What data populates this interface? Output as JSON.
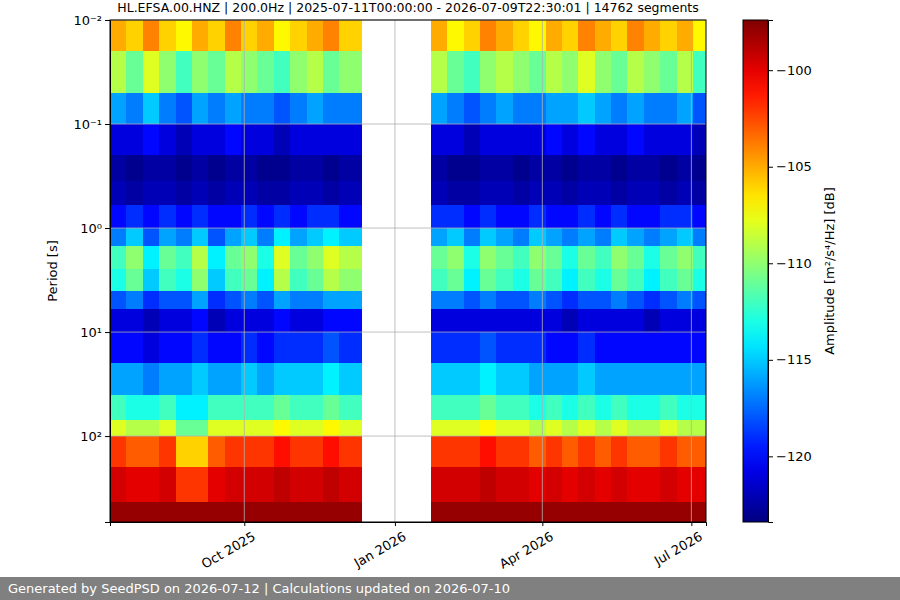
{
  "chart_data": {
    "type": "heatmap",
    "title": "HL.EFSA.00.HNZ | 200.0Hz | 2025-07-11T00:00:00 - 2026-07-09T22:30:01 | 14762 segments",
    "ylabel": "Period [s]",
    "log": "y",
    "grid": true,
    "xlim": [
      "2025-07-11T00:00:00",
      "2026-07-09T22:30:01"
    ],
    "ylim": [
      0.01,
      670
    ],
    "xticks": [
      {
        "value": "2025-10-01",
        "label": "Oct 2025"
      },
      {
        "value": "2026-01-01",
        "label": "Jan 2026"
      },
      {
        "value": "2026-04-01",
        "label": "Apr 2026"
      },
      {
        "value": "2026-07-01",
        "label": "Jul 2026"
      }
    ],
    "yticks": [
      {
        "value": 0.01,
        "label": "10⁻²"
      },
      {
        "value": 0.1,
        "label": "10⁻¹"
      },
      {
        "value": 1,
        "label": "10⁰"
      },
      {
        "value": 10,
        "label": "10¹"
      },
      {
        "value": 100,
        "label": "10²"
      }
    ],
    "x_bins": [
      "2025-07-11",
      "2025-07-21",
      "2025-07-31",
      "2025-08-10",
      "2025-08-20",
      "2025-08-30",
      "2025-09-09",
      "2025-09-19",
      "2025-09-29",
      "2025-10-09",
      "2025-10-19",
      "2025-10-29",
      "2025-11-08",
      "2025-11-18",
      "2025-11-28",
      "2025-12-12",
      "2026-01-23",
      "2026-02-02",
      "2026-02-12",
      "2026-02-22",
      "2026-03-04",
      "2026-03-14",
      "2026-03-24",
      "2026-04-03",
      "2026-04-13",
      "2026-04-23",
      "2026-05-03",
      "2026-05-13",
      "2026-05-23",
      "2026-06-02",
      "2026-06-12",
      "2026-06-22",
      "2026-07-02",
      "2026-07-09T22:30:01"
    ],
    "y_bins": [
      0.01,
      0.02,
      0.05,
      0.1,
      0.2,
      0.35,
      0.6,
      1,
      1.5,
      2.5,
      4,
      6,
      10,
      20,
      40,
      70,
      100,
      200,
      430,
      670
    ],
    "values": [
      [
        -105,
        -106,
        -104,
        -106,
        -107,
        -105,
        -106,
        -104,
        -106,
        -105,
        -107,
        -106,
        -105,
        -104,
        -106,
        null,
        -105,
        -107,
        -106,
        -104,
        -105,
        -106,
        -107,
        -105,
        -106,
        -104,
        -105,
        -106,
        -104,
        -105,
        -106,
        -105,
        -107
      ],
      [
        -109,
        -111,
        -108,
        -110,
        -112,
        -110,
        -111,
        -109,
        -110,
        -111,
        -112,
        -110,
        -109,
        -111,
        -110,
        null,
        -109,
        -111,
        -112,
        -110,
        -109,
        -110,
        -111,
        -109,
        -110,
        -108,
        -110,
        -111,
        -109,
        -110,
        -111,
        -109,
        -112
      ],
      [
        -116,
        -117,
        -115,
        -117,
        -118,
        -116,
        -117,
        -116,
        -117,
        -117,
        -118,
        -117,
        -116,
        -117,
        -117,
        null,
        -116,
        -117,
        -118,
        -117,
        -116,
        -117,
        -117,
        -116,
        -116,
        -115,
        -116,
        -117,
        -116,
        -117,
        -117,
        -116,
        -118
      ],
      [
        -121,
        -121,
        -120,
        -121,
        -122,
        -121,
        -121,
        -120,
        -121,
        -121,
        -122,
        -121,
        -121,
        -121,
        -121,
        null,
        -121,
        -121,
        -122,
        -121,
        -121,
        -121,
        -121,
        -120,
        -121,
        -120,
        -121,
        -121,
        -120,
        -121,
        -121,
        -121,
        -122
      ],
      [
        -122.5,
        -123,
        -122.5,
        -122.5,
        -123,
        -122.5,
        -123,
        -122.5,
        -122.5,
        -123,
        -123,
        -122.5,
        -122.5,
        -123,
        -122.5,
        null,
        -122.5,
        -123,
        -123,
        -122.5,
        -122.5,
        -123,
        -122.5,
        -122.5,
        -123,
        -122.5,
        -122.5,
        -123,
        -122.5,
        -122.5,
        -123,
        -122.5,
        -123
      ],
      [
        -122,
        -122.5,
        -122,
        -122,
        -122.5,
        -122,
        -122.5,
        -122,
        -122,
        -122.5,
        -122.5,
        -122,
        -122,
        -122.5,
        -122,
        null,
        -122,
        -122.5,
        -122.5,
        -122,
        -122,
        -122.5,
        -122,
        -122,
        -122.5,
        -122,
        -122,
        -122.5,
        -122,
        -122,
        -122.5,
        -122,
        -122.5
      ],
      [
        -120,
        -119,
        -120,
        -119,
        -120,
        -119,
        -120,
        -120,
        -119,
        -120,
        -119,
        -120,
        -119,
        -119,
        -120,
        null,
        -119,
        -119,
        -120,
        -119,
        -120,
        -120,
        -119,
        -120,
        -120,
        -119,
        -120,
        -119,
        -120,
        -120,
        -119,
        -119,
        -120
      ],
      [
        -117,
        -115,
        -118,
        -116,
        -117,
        -115,
        -118,
        -116,
        -115,
        -117,
        -114,
        -116,
        -115,
        -114,
        -115,
        null,
        -116,
        -115,
        -117,
        -115,
        -116,
        -117,
        -115,
        -116,
        -117,
        -116,
        -117,
        -115,
        -116,
        -117,
        -116,
        -115,
        -117
      ],
      [
        -112,
        -110,
        -114,
        -111,
        -112,
        -109,
        -114,
        -111,
        -110,
        -113,
        -108,
        -111,
        -110,
        -108,
        -109,
        null,
        -111,
        -110,
        -113,
        -110,
        -111,
        -112,
        -110,
        -111,
        -113,
        -111,
        -112,
        -110,
        -111,
        -113,
        -111,
        -110,
        -112
      ],
      [
        -113,
        -111,
        -115,
        -112,
        -113,
        -110,
        -115,
        -112,
        -111,
        -114,
        -109,
        -112,
        -111,
        -109,
        -110,
        null,
        -112,
        -111,
        -114,
        -111,
        -112,
        -113,
        -111,
        -112,
        -114,
        -112,
        -113,
        -111,
        -112,
        -114,
        -112,
        -111,
        -113
      ],
      [
        -118,
        -117,
        -119,
        -118,
        -118,
        -116,
        -119,
        -118,
        -117,
        -118,
        -116,
        -117,
        -117,
        -116,
        -116,
        null,
        -117,
        -117,
        -118,
        -117,
        -118,
        -118,
        -117,
        -118,
        -119,
        -118,
        -118,
        -117,
        -118,
        -119,
        -118,
        -117,
        -118
      ],
      [
        -121,
        -121,
        -122,
        -121,
        -121,
        -120,
        -122,
        -121,
        -121,
        -121,
        -120,
        -121,
        -121,
        -120,
        -120,
        null,
        -121,
        -121,
        -121,
        -121,
        -121,
        -121,
        -121,
        -121,
        -122,
        -121,
        -121,
        -121,
        -121,
        -122,
        -121,
        -121,
        -121
      ],
      [
        -120,
        -120,
        -121,
        -120,
        -120,
        -119,
        -120,
        -120,
        -119,
        -120,
        -119,
        -119,
        -119,
        -118,
        -119,
        null,
        -119,
        -119,
        -119,
        -118,
        -119,
        -119,
        -119,
        -120,
        -120,
        -119,
        -120,
        -120,
        -120,
        -120,
        -120,
        -120,
        -120
      ],
      [
        -116,
        -116,
        -117,
        -116,
        -116,
        -115,
        -116,
        -116,
        -115,
        -116,
        -115,
        -115,
        -115,
        -114,
        -115,
        null,
        -115,
        -115,
        -115,
        -114,
        -115,
        -115,
        -116,
        -116,
        -116,
        -115,
        -116,
        -116,
        -116,
        -116,
        -116,
        -116,
        -116
      ],
      [
        -112,
        -113,
        -113,
        -112,
        -114,
        -114,
        -112,
        -112,
        -112,
        -112,
        -111,
        -112,
        -112,
        -111,
        -112,
        null,
        -112,
        -112,
        -112,
        -111,
        -112,
        -112,
        -113,
        -112,
        -113,
        -112,
        -113,
        -112,
        -113,
        -113,
        -112,
        -113,
        -113
      ],
      [
        -108,
        -109,
        -109,
        -108,
        -111,
        -111,
        -108,
        -108,
        -108,
        -108,
        -107,
        -108,
        -108,
        -107,
        -108,
        null,
        -108,
        -108,
        -108,
        -107,
        -108,
        -108,
        -109,
        -108,
        -109,
        -108,
        -109,
        -108,
        -109,
        -109,
        -108,
        -109,
        -109
      ],
      [
        -102,
        -103,
        -103,
        -102,
        -106,
        -106,
        -103,
        -102,
        -102,
        -102,
        -101,
        -102,
        -102,
        -101,
        -102,
        null,
        -102,
        -102,
        -102,
        -101,
        -102,
        -102,
        -103,
        -102,
        -103,
        -102,
        -103,
        -102,
        -103,
        -103,
        -102,
        -103,
        -103
      ],
      [
        -99.5,
        -100,
        -100,
        -99.5,
        -102,
        -102,
        -100,
        -99.5,
        -99.5,
        -99.5,
        -99,
        -99.5,
        -99.5,
        -99,
        -99.5,
        null,
        -99.5,
        -99.5,
        -99.5,
        -99,
        -99.5,
        -99.5,
        -100,
        -99.5,
        -100,
        -99.5,
        -100,
        -99.5,
        -100,
        -100,
        -99.5,
        -100,
        -100
      ],
      [
        -98,
        -98,
        -98,
        -98,
        -98,
        -98,
        -98,
        -98,
        -98,
        -98,
        -98,
        -98,
        -98,
        -98,
        -98,
        null,
        -98,
        -98,
        -98,
        -98,
        -98,
        -98,
        -98,
        -98,
        -98,
        -98,
        -98,
        -98,
        -98,
        -98,
        -98,
        -98,
        -98
      ]
    ],
    "colorbar": {
      "label": "Amplitude [m²/s⁴/Hz] [dB]",
      "range": [
        -123.4,
        -97.4
      ],
      "ticks": [
        {
          "value": -100,
          "label": "−100"
        },
        {
          "value": -105,
          "label": "−105"
        },
        {
          "value": -110,
          "label": "−110"
        },
        {
          "value": -115,
          "label": "−115"
        },
        {
          "value": -120,
          "label": "−120"
        }
      ]
    },
    "footer": "Generated by SeedPSD on 2026-07-12 | Calculations updated on 2026-07-10"
  }
}
